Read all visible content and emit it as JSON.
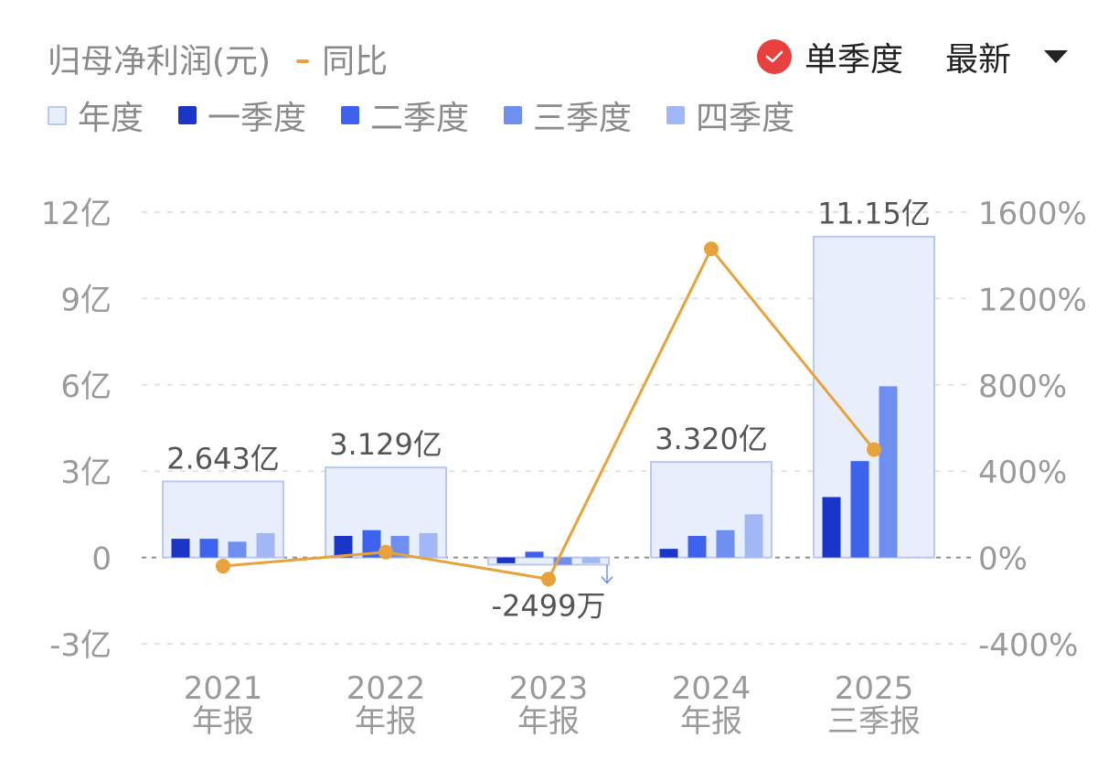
{
  "header": {
    "title": "归母净利润(元)",
    "yoy_label": "同比",
    "quarterly_label": "单季度",
    "period_select": "最新"
  },
  "colors": {
    "annual_fill": "#e8eefc",
    "annual_stroke": "#b9c9ee",
    "q1": "#1a35c8",
    "q2": "#3d63ee",
    "q3": "#6f8ff0",
    "q4": "#a2b8f6",
    "yoy": "#e8a23b",
    "check": "#e8413d"
  },
  "legend": [
    {
      "key": "annual",
      "label": "年度"
    },
    {
      "key": "q1",
      "label": "一季度"
    },
    {
      "key": "q2",
      "label": "二季度"
    },
    {
      "key": "q3",
      "label": "三季度"
    },
    {
      "key": "q4",
      "label": "四季度"
    }
  ],
  "chart_data": {
    "type": "bar",
    "categories": [
      [
        "2021",
        "年报"
      ],
      [
        "2022",
        "年报"
      ],
      [
        "2023",
        "年报"
      ],
      [
        "2024",
        "年报"
      ],
      [
        "2025",
        "三季报"
      ]
    ],
    "annual": {
      "values": [
        2.643,
        3.129,
        -0.2499,
        3.32,
        11.15
      ],
      "labels": [
        "2.643亿",
        "3.129亿",
        "-2499万",
        "3.320亿",
        "11.15亿"
      ]
    },
    "quarters": [
      {
        "name": "一季度",
        "values": [
          0.65,
          0.75,
          -0.2,
          0.3,
          2.1
        ]
      },
      {
        "name": "二季度",
        "values": [
          0.65,
          0.95,
          0.2,
          0.75,
          3.35
        ]
      },
      {
        "name": "三季度",
        "values": [
          0.55,
          0.75,
          -0.25,
          0.95,
          5.95
        ]
      },
      {
        "name": "四季度",
        "values": [
          0.85,
          0.85,
          -0.2,
          1.5,
          null
        ]
      }
    ],
    "yoy": {
      "name": "同比",
      "values": [
        -40,
        25,
        -100,
        1430,
        500
      ]
    },
    "y_left": {
      "ticks": [
        12,
        9,
        6,
        3,
        0,
        -3
      ],
      "labels": [
        "12亿",
        "9亿",
        "6亿",
        "3亿",
        "0",
        "-3亿"
      ],
      "range": [
        -3,
        12
      ]
    },
    "y_right": {
      "ticks": [
        1600,
        1200,
        800,
        400,
        0,
        -400
      ],
      "labels": [
        "1600%",
        "1200%",
        "800%",
        "400%",
        "0%",
        "-400%"
      ],
      "range": [
        -400,
        1600
      ]
    },
    "grid": true
  }
}
